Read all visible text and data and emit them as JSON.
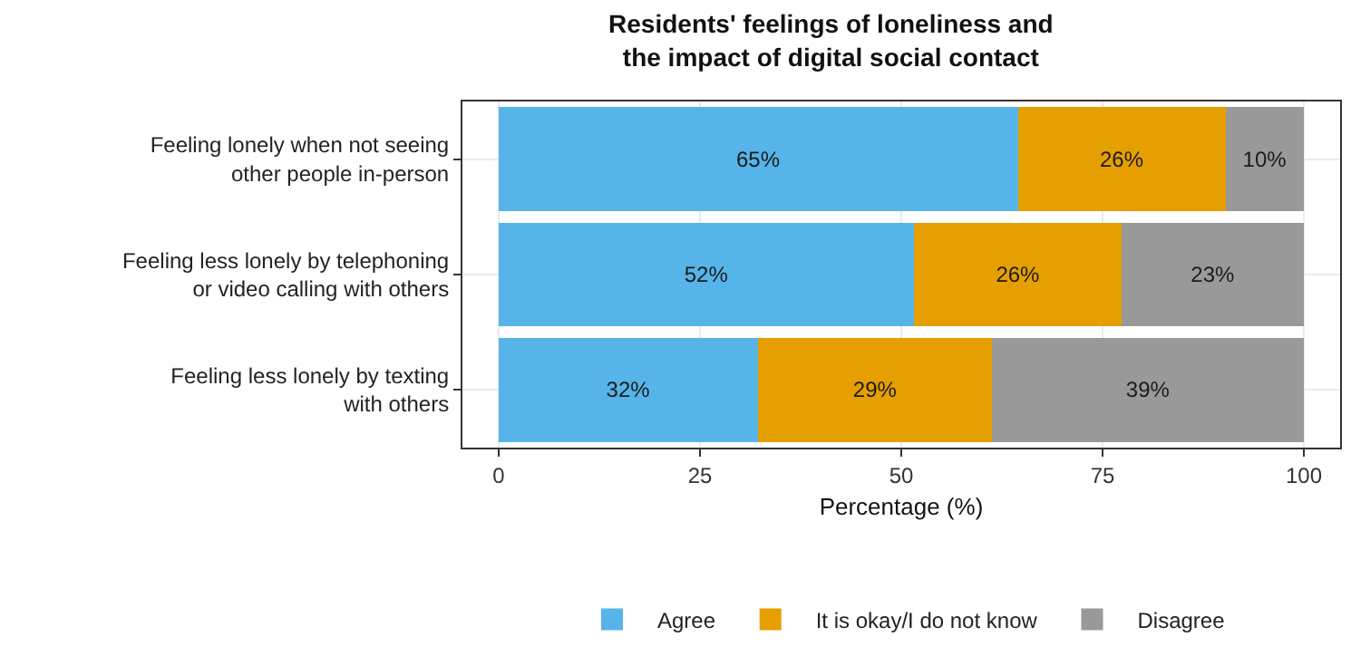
{
  "chart_data": {
    "type": "bar",
    "orientation": "horizontal",
    "stacked": true,
    "title": "Residents' feelings of loneliness and the impact of digital social contact",
    "xlabel": "Percentage (%)",
    "categories": [
      "Feeling lonely when not seeing other people in-person",
      "Feeling less lonely by telephoning or video calling with others",
      "Feeling less lonely by texting with others"
    ],
    "series": [
      {
        "name": "Agree",
        "color": "#56b4e9",
        "values": [
          64.5,
          51.6,
          32.2
        ],
        "value_labels": [
          "65%",
          "52%",
          "32%"
        ]
      },
      {
        "name": "It is okay/I do not know",
        "color": "#e69f00",
        "values": [
          25.8,
          25.8,
          29.1
        ],
        "value_labels": [
          "26%",
          "26%",
          "29%"
        ]
      },
      {
        "name": "Disagree",
        "color": "#999999",
        "values": [
          9.7,
          22.6,
          38.7
        ],
        "value_labels": [
          "10%",
          "23%",
          "39%"
        ]
      }
    ],
    "xlim": [
      -4.5,
      104.5
    ],
    "xticks": [
      0,
      25,
      50,
      75,
      100
    ],
    "grid": true,
    "legend": "bottom"
  }
}
